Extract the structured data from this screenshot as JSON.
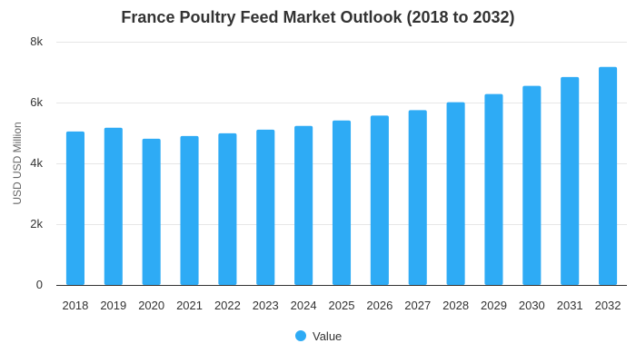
{
  "chart_data": {
    "type": "bar",
    "title": "France Poultry Feed Market Outlook (2018 to 2032)",
    "xlabel": "",
    "ylabel": "USD USD Million",
    "categories": [
      "2018",
      "2019",
      "2020",
      "2021",
      "2022",
      "2023",
      "2024",
      "2025",
      "2026",
      "2027",
      "2028",
      "2029",
      "2030",
      "2031",
      "2032"
    ],
    "series": [
      {
        "name": "Value",
        "color": "#2eabf5",
        "values": [
          5050,
          5170,
          4810,
          4900,
          4990,
          5110,
          5230,
          5410,
          5570,
          5750,
          6010,
          6280,
          6550,
          6840,
          7170
        ]
      }
    ],
    "ylim": [
      0,
      8000
    ],
    "yticks": [
      0,
      2000,
      4000,
      6000,
      8000
    ],
    "ytick_labels": [
      "0",
      "2k",
      "4k",
      "6k",
      "8k"
    ],
    "grid": true,
    "legend_position": "bottom-center"
  }
}
